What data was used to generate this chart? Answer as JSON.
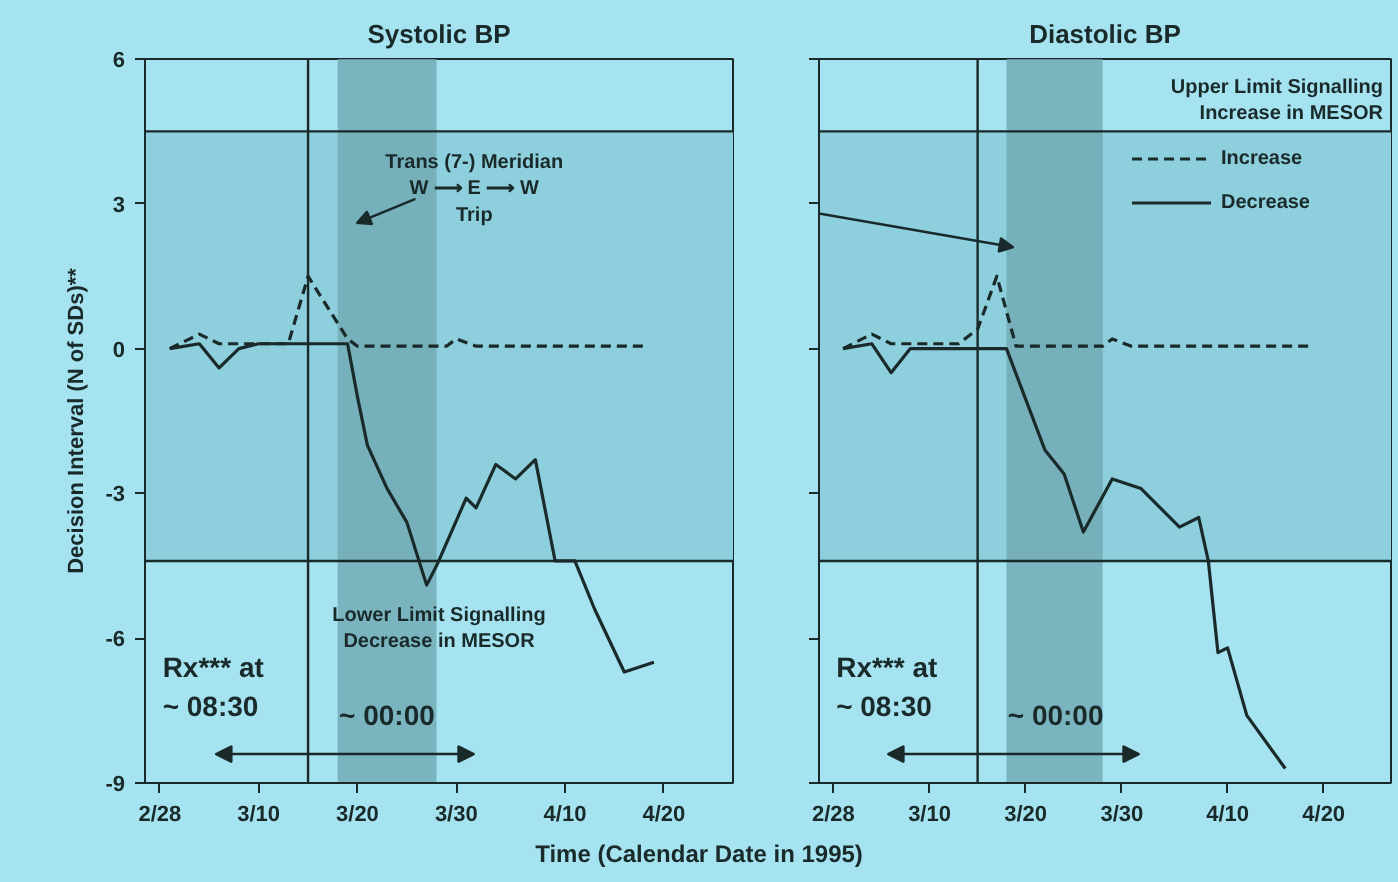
{
  "chart_data": [
    {
      "type": "line",
      "title": "Systolic BP",
      "ylabel": "Decision Interval (N of SDs)**",
      "xlabel": "Time (Calendar Date in 1995)",
      "xlim": [
        "1995-02-26T12:00",
        "1995-04-27"
      ],
      "ylim": [
        -9,
        6
      ],
      "yticks": [
        -9,
        -6,
        -3,
        0,
        3,
        6
      ],
      "xticks": [
        {
          "value": "1995-02-28",
          "label": "2/28"
        },
        {
          "value": "1995-03-10",
          "label": "3/10"
        },
        {
          "value": "1995-03-20",
          "label": "3/20"
        },
        {
          "value": "1995-03-30",
          "label": "3/30"
        },
        {
          "value": "1995-04-10",
          "label": "4/10"
        },
        {
          "value": "1995-04-20",
          "label": "4/20"
        }
      ],
      "grid": false,
      "legend": false,
      "series": [
        {
          "color": "#1a2a2a",
          "line_style": "dashed",
          "x": [
            "1995-03-01",
            "1995-03-04",
            "1995-03-06",
            "1995-03-10",
            "1995-03-13",
            "1995-03-15",
            "1995-03-19",
            "1995-03-20",
            "1995-03-29",
            "1995-03-30",
            "1995-04-01",
            "1995-04-18"
          ],
          "values": [
            0,
            0.3,
            0.1,
            0.1,
            0.1,
            1.5,
            0.2,
            0.05,
            0.05,
            0.2,
            0.05,
            0.05
          ]
        },
        {
          "color": "#1a2a2a",
          "line_style": "solid",
          "x": [
            "1995-03-01",
            "1995-03-04",
            "1995-03-06",
            "1995-03-08",
            "1995-03-10",
            "1995-03-13",
            "1995-03-19",
            "1995-03-20",
            "1995-03-21",
            "1995-03-23",
            "1995-03-25",
            "1995-03-27",
            "1995-03-28",
            "1995-03-31",
            "1995-04-01",
            "1995-04-03",
            "1995-04-05",
            "1995-04-07",
            "1995-04-09",
            "1995-04-11",
            "1995-04-13",
            "1995-04-16",
            "1995-04-19"
          ],
          "values": [
            0,
            0.1,
            -0.4,
            0,
            0.1,
            0.1,
            0.1,
            -1.0,
            -2.0,
            -2.9,
            -3.6,
            -4.9,
            -4.5,
            -3.1,
            -3.3,
            -2.4,
            -2.7,
            -2.3,
            -4.4,
            -4.4,
            -5.4,
            -6.7,
            -6.5
          ]
        }
      ],
      "ref_lines": [
        {
          "axis": "y",
          "value": 4.5,
          "label": null
        },
        {
          "axis": "y",
          "value": -4.4,
          "label": "Lower Limit Signalling\nDecrease in MESOR"
        },
        {
          "axis": "x",
          "value": "1995-03-15",
          "label": null
        }
      ],
      "bands": [
        {
          "axis": "y",
          "from": -4.4,
          "to": 4.5,
          "label": null,
          "color": "#8dcfdc"
        },
        {
          "axis": "x",
          "from": "1995-03-18",
          "to": "1995-03-28",
          "label": null,
          "color": "#6fa8b3"
        }
      ],
      "annotations": [
        "Trans (7-) Meridian\nW ⟶ E ⟶ W\nTrip",
        "Rx*** at\n~ 08:30",
        "~ 00:00"
      ]
    },
    {
      "type": "line",
      "title": "Diastolic BP",
      "tick_labels": "x",
      "xlim": [
        "1995-02-26T12:00",
        "1995-04-27"
      ],
      "ylim": [
        -9,
        6
      ],
      "yticks": [
        -9,
        -6,
        -3,
        0,
        3,
        6
      ],
      "xticks": [
        {
          "value": "1995-02-28",
          "label": "2/28"
        },
        {
          "value": "1995-03-10",
          "label": "3/10"
        },
        {
          "value": "1995-03-20",
          "label": "3/20"
        },
        {
          "value": "1995-03-30",
          "label": "3/30"
        },
        {
          "value": "1995-04-10",
          "label": "4/10"
        },
        {
          "value": "1995-04-20",
          "label": "4/20"
        }
      ],
      "grid": false,
      "legend": "top right",
      "series": [
        {
          "name": "Increase",
          "color": "#1a2a2a",
          "line_style": "dashed",
          "x": [
            "1995-03-01",
            "1995-03-04",
            "1995-03-06",
            "1995-03-13",
            "1995-03-15",
            "1995-03-17",
            "1995-03-19",
            "1995-03-28",
            "1995-03-29",
            "1995-03-31",
            "1995-04-19"
          ],
          "values": [
            0,
            0.3,
            0.1,
            0.1,
            0.4,
            1.5,
            0.05,
            0.05,
            0.2,
            0.05,
            0.05
          ]
        },
        {
          "name": "Decrease",
          "color": "#1a2a2a",
          "line_style": "solid",
          "x": [
            "1995-03-01",
            "1995-03-04",
            "1995-03-06",
            "1995-03-08",
            "1995-03-18",
            "1995-03-22",
            "1995-03-24",
            "1995-03-26",
            "1995-03-29",
            "1995-04-01",
            "1995-04-05",
            "1995-04-07",
            "1995-04-08",
            "1995-04-09",
            "1995-04-10",
            "1995-04-12",
            "1995-04-16"
          ],
          "values": [
            0,
            0.1,
            -0.5,
            0,
            0,
            -2.1,
            -2.6,
            -3.8,
            -2.7,
            -2.9,
            -3.7,
            -3.5,
            -4.4,
            -6.3,
            -6.2,
            -7.6,
            -8.7
          ]
        }
      ],
      "ref_lines": [
        {
          "axis": "y",
          "value": 4.5,
          "label": "Upper Limit Signalling\nIncrease in MESOR"
        },
        {
          "axis": "y",
          "value": -4.4,
          "label": null
        },
        {
          "axis": "x",
          "value": "1995-03-15",
          "label": null
        }
      ],
      "bands": [
        {
          "axis": "y",
          "from": -4.4,
          "to": 4.5,
          "label": null,
          "color": "#8dcfdc"
        },
        {
          "axis": "x",
          "from": "1995-03-18",
          "to": "1995-03-28",
          "label": null,
          "color": "#6fa8b3"
        }
      ],
      "annotations": [
        "Rx*** at\n~ 08:30",
        "~ 00:00"
      ]
    }
  ]
}
